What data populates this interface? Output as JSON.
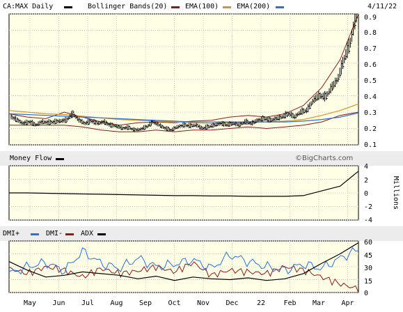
{
  "chart_data": [
    {
      "type": "line",
      "panel": "price",
      "legend": [
        {
          "label": "CA:MAX Daily",
          "color": "#000000"
        },
        {
          "label": "Bollinger Bands(20)",
          "color": "#8b1a1a"
        },
        {
          "label": "EMA(100)",
          "color": "#d4962a"
        },
        {
          "label": "EMA(200)",
          "color": "#2a6fdb"
        }
      ],
      "date": "4/11/22",
      "y_ticks": [
        "0.9",
        "0.8",
        "0.7",
        "0.6",
        "0.5",
        "0.4",
        "0.3",
        "0.2",
        "0.1"
      ],
      "ylim": [
        0.1,
        0.9
      ],
      "x": [
        0,
        4,
        8,
        12,
        16,
        20,
        24,
        28,
        32,
        36,
        40,
        44,
        48,
        52,
        56
      ],
      "price": [
        0.26,
        0.24,
        0.245,
        0.3,
        0.23,
        0.21,
        0.19,
        0.21,
        0.21,
        0.2,
        0.22,
        0.2,
        0.22,
        0.23,
        0.22
      ],
      "price_detail": [
        {
          "x": 0,
          "y": 0.27
        },
        {
          "x": 1,
          "y": 0.25
        },
        {
          "x": 2,
          "y": 0.23
        },
        {
          "x": 3,
          "y": 0.24
        },
        {
          "x": 4,
          "y": 0.22
        },
        {
          "x": 5,
          "y": 0.24
        },
        {
          "x": 6,
          "y": 0.235
        },
        {
          "x": 7,
          "y": 0.24
        },
        {
          "x": 8,
          "y": 0.245
        },
        {
          "x": 9,
          "y": 0.25
        },
        {
          "x": 10,
          "y": 0.29
        },
        {
          "x": 11,
          "y": 0.25
        },
        {
          "x": 12,
          "y": 0.23
        },
        {
          "x": 13,
          "y": 0.245
        },
        {
          "x": 14,
          "y": 0.23
        },
        {
          "x": 15,
          "y": 0.24
        },
        {
          "x": 16,
          "y": 0.22
        },
        {
          "x": 17,
          "y": 0.215
        },
        {
          "x": 18,
          "y": 0.2
        },
        {
          "x": 19,
          "y": 0.205
        },
        {
          "x": 20,
          "y": 0.19
        },
        {
          "x": 21,
          "y": 0.195
        },
        {
          "x": 22,
          "y": 0.21
        },
        {
          "x": 23,
          "y": 0.24
        },
        {
          "x": 24,
          "y": 0.22
        },
        {
          "x": 25,
          "y": 0.2
        },
        {
          "x": 26,
          "y": 0.19
        },
        {
          "x": 27,
          "y": 0.21
        },
        {
          "x": 28,
          "y": 0.22
        },
        {
          "x": 29,
          "y": 0.215
        },
        {
          "x": 30,
          "y": 0.22
        },
        {
          "x": 31,
          "y": 0.2
        },
        {
          "x": 32,
          "y": 0.21
        },
        {
          "x": 33,
          "y": 0.22
        },
        {
          "x": 34,
          "y": 0.23
        },
        {
          "x": 35,
          "y": 0.22
        },
        {
          "x": 36,
          "y": 0.23
        },
        {
          "x": 37,
          "y": 0.22
        },
        {
          "x": 38,
          "y": 0.24
        },
        {
          "x": 39,
          "y": 0.23
        },
        {
          "x": 40,
          "y": 0.25
        },
        {
          "x": 41,
          "y": 0.26
        },
        {
          "x": 42,
          "y": 0.25
        },
        {
          "x": 43,
          "y": 0.26
        },
        {
          "x": 44,
          "y": 0.27
        },
        {
          "x": 45,
          "y": 0.29
        },
        {
          "x": 46,
          "y": 0.27
        },
        {
          "x": 47,
          "y": 0.3
        },
        {
          "x": 48,
          "y": 0.31
        },
        {
          "x": 49,
          "y": 0.37
        },
        {
          "x": 50,
          "y": 0.4
        },
        {
          "x": 51,
          "y": 0.39
        },
        {
          "x": 52,
          "y": 0.45
        },
        {
          "x": 53,
          "y": 0.5
        },
        {
          "x": 54,
          "y": 0.62
        },
        {
          "x": 55,
          "y": 0.72
        },
        {
          "x": 56,
          "y": 0.89
        }
      ],
      "bb_upper": [
        0.29,
        0.27,
        0.26,
        0.3,
        0.27,
        0.24,
        0.22,
        0.235,
        0.24,
        0.235,
        0.245,
        0.25,
        0.27,
        0.28,
        0.27,
        0.29,
        0.34,
        0.45,
        0.62,
        0.9
      ],
      "bb_lower": [
        0.22,
        0.22,
        0.22,
        0.22,
        0.21,
        0.19,
        0.18,
        0.18,
        0.19,
        0.18,
        0.19,
        0.19,
        0.2,
        0.21,
        0.2,
        0.21,
        0.22,
        0.24,
        0.28,
        0.3
      ],
      "ema100": [
        0.31,
        0.3,
        0.29,
        0.285,
        0.275,
        0.265,
        0.255,
        0.25,
        0.245,
        0.24,
        0.235,
        0.23,
        0.235,
        0.24,
        0.24,
        0.245,
        0.255,
        0.28,
        0.31,
        0.35
      ],
      "ema200": [
        0.29,
        0.285,
        0.28,
        0.275,
        0.27,
        0.265,
        0.26,
        0.255,
        0.25,
        0.245,
        0.24,
        0.24,
        0.24,
        0.24,
        0.24,
        0.24,
        0.245,
        0.255,
        0.27,
        0.295
      ],
      "watermark": "©BigCharts.com"
    },
    {
      "type": "line",
      "panel": "money-flow",
      "legend": [
        {
          "label": "Money Flow",
          "color": "#000000"
        }
      ],
      "y_ticks": [
        "4",
        "2",
        "0",
        "-2",
        "-4"
      ],
      "ylim": [
        -4,
        4
      ],
      "ylabel": "Millions",
      "values": [
        0,
        0,
        -0.05,
        -0.1,
        -0.15,
        -0.2,
        -0.25,
        -0.3,
        -0.35,
        -0.4,
        -0.4,
        -0.45,
        -0.45,
        -0.5,
        -0.5,
        -0.5,
        -0.4,
        0.3,
        1.0,
        3.2
      ]
    },
    {
      "type": "line",
      "panel": "dmi",
      "legend": [
        {
          "label": "DMI+",
          "color": "#2a6fdb"
        },
        {
          "label": "DMI-",
          "color": "#8b1a1a"
        },
        {
          "label": "ADX",
          "color": "#000000"
        }
      ],
      "y_ticks": [
        "60",
        "45",
        "30",
        "15",
        "0"
      ],
      "ylim": [
        0,
        60
      ],
      "dmi_plus": [
        22,
        30,
        35,
        25,
        48,
        34,
        28,
        40,
        30,
        33,
        38,
        28,
        44,
        36,
        30,
        26,
        33,
        28,
        40,
        50
      ],
      "dmi_minus": [
        28,
        22,
        30,
        26,
        18,
        28,
        22,
        25,
        30,
        24,
        35,
        20,
        26,
        24,
        22,
        30,
        26,
        18,
        10,
        4
      ],
      "adx": [
        36,
        26,
        18,
        20,
        24,
        22,
        20,
        16,
        19,
        14,
        18,
        16,
        15,
        17,
        14,
        16,
        22,
        34,
        45,
        58
      ],
      "x_labels": [
        "May",
        "Jun",
        "Jul",
        "Aug",
        "Sep",
        "Oct",
        "Nov",
        "Dec",
        "22",
        "Feb",
        "Mar",
        "Apr"
      ]
    }
  ]
}
